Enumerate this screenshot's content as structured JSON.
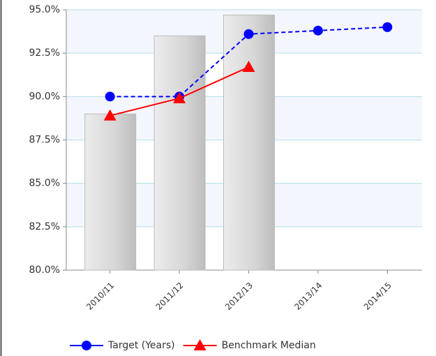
{
  "chart_data": {
    "type": "bar",
    "categories": [
      "2010/11",
      "2011/12",
      "2012/13",
      "2013/14",
      "2014/15"
    ],
    "series": [
      {
        "type": "bar",
        "color": "#d4d4d4",
        "values": [
          89.0,
          93.5,
          94.7,
          null,
          null
        ]
      },
      {
        "type": "line",
        "name": "Target (Years)",
        "color": "#0000ff",
        "dashed": true,
        "marker": "circle",
        "values": [
          90.0,
          90.0,
          93.6,
          93.8,
          94.0
        ]
      },
      {
        "type": "line",
        "name": "Benchmark Median",
        "color": "#ff0000",
        "dashed": false,
        "marker": "triangle",
        "values": [
          88.9,
          89.9,
          91.7,
          null,
          null
        ]
      }
    ],
    "ylim": [
      80,
      95
    ],
    "yticks": [
      {
        "value": 80,
        "label": "80.0%"
      },
      {
        "value": 82.5,
        "label": "82.5%"
      },
      {
        "value": 85,
        "label": "85.0%"
      },
      {
        "value": 87.5,
        "label": "87.5%"
      },
      {
        "value": 90,
        "label": "90.0%"
      },
      {
        "value": 92.5,
        "label": "92.5%"
      },
      {
        "value": 95,
        "label": "95.0%"
      }
    ],
    "grid": true,
    "legend": "bottom"
  }
}
